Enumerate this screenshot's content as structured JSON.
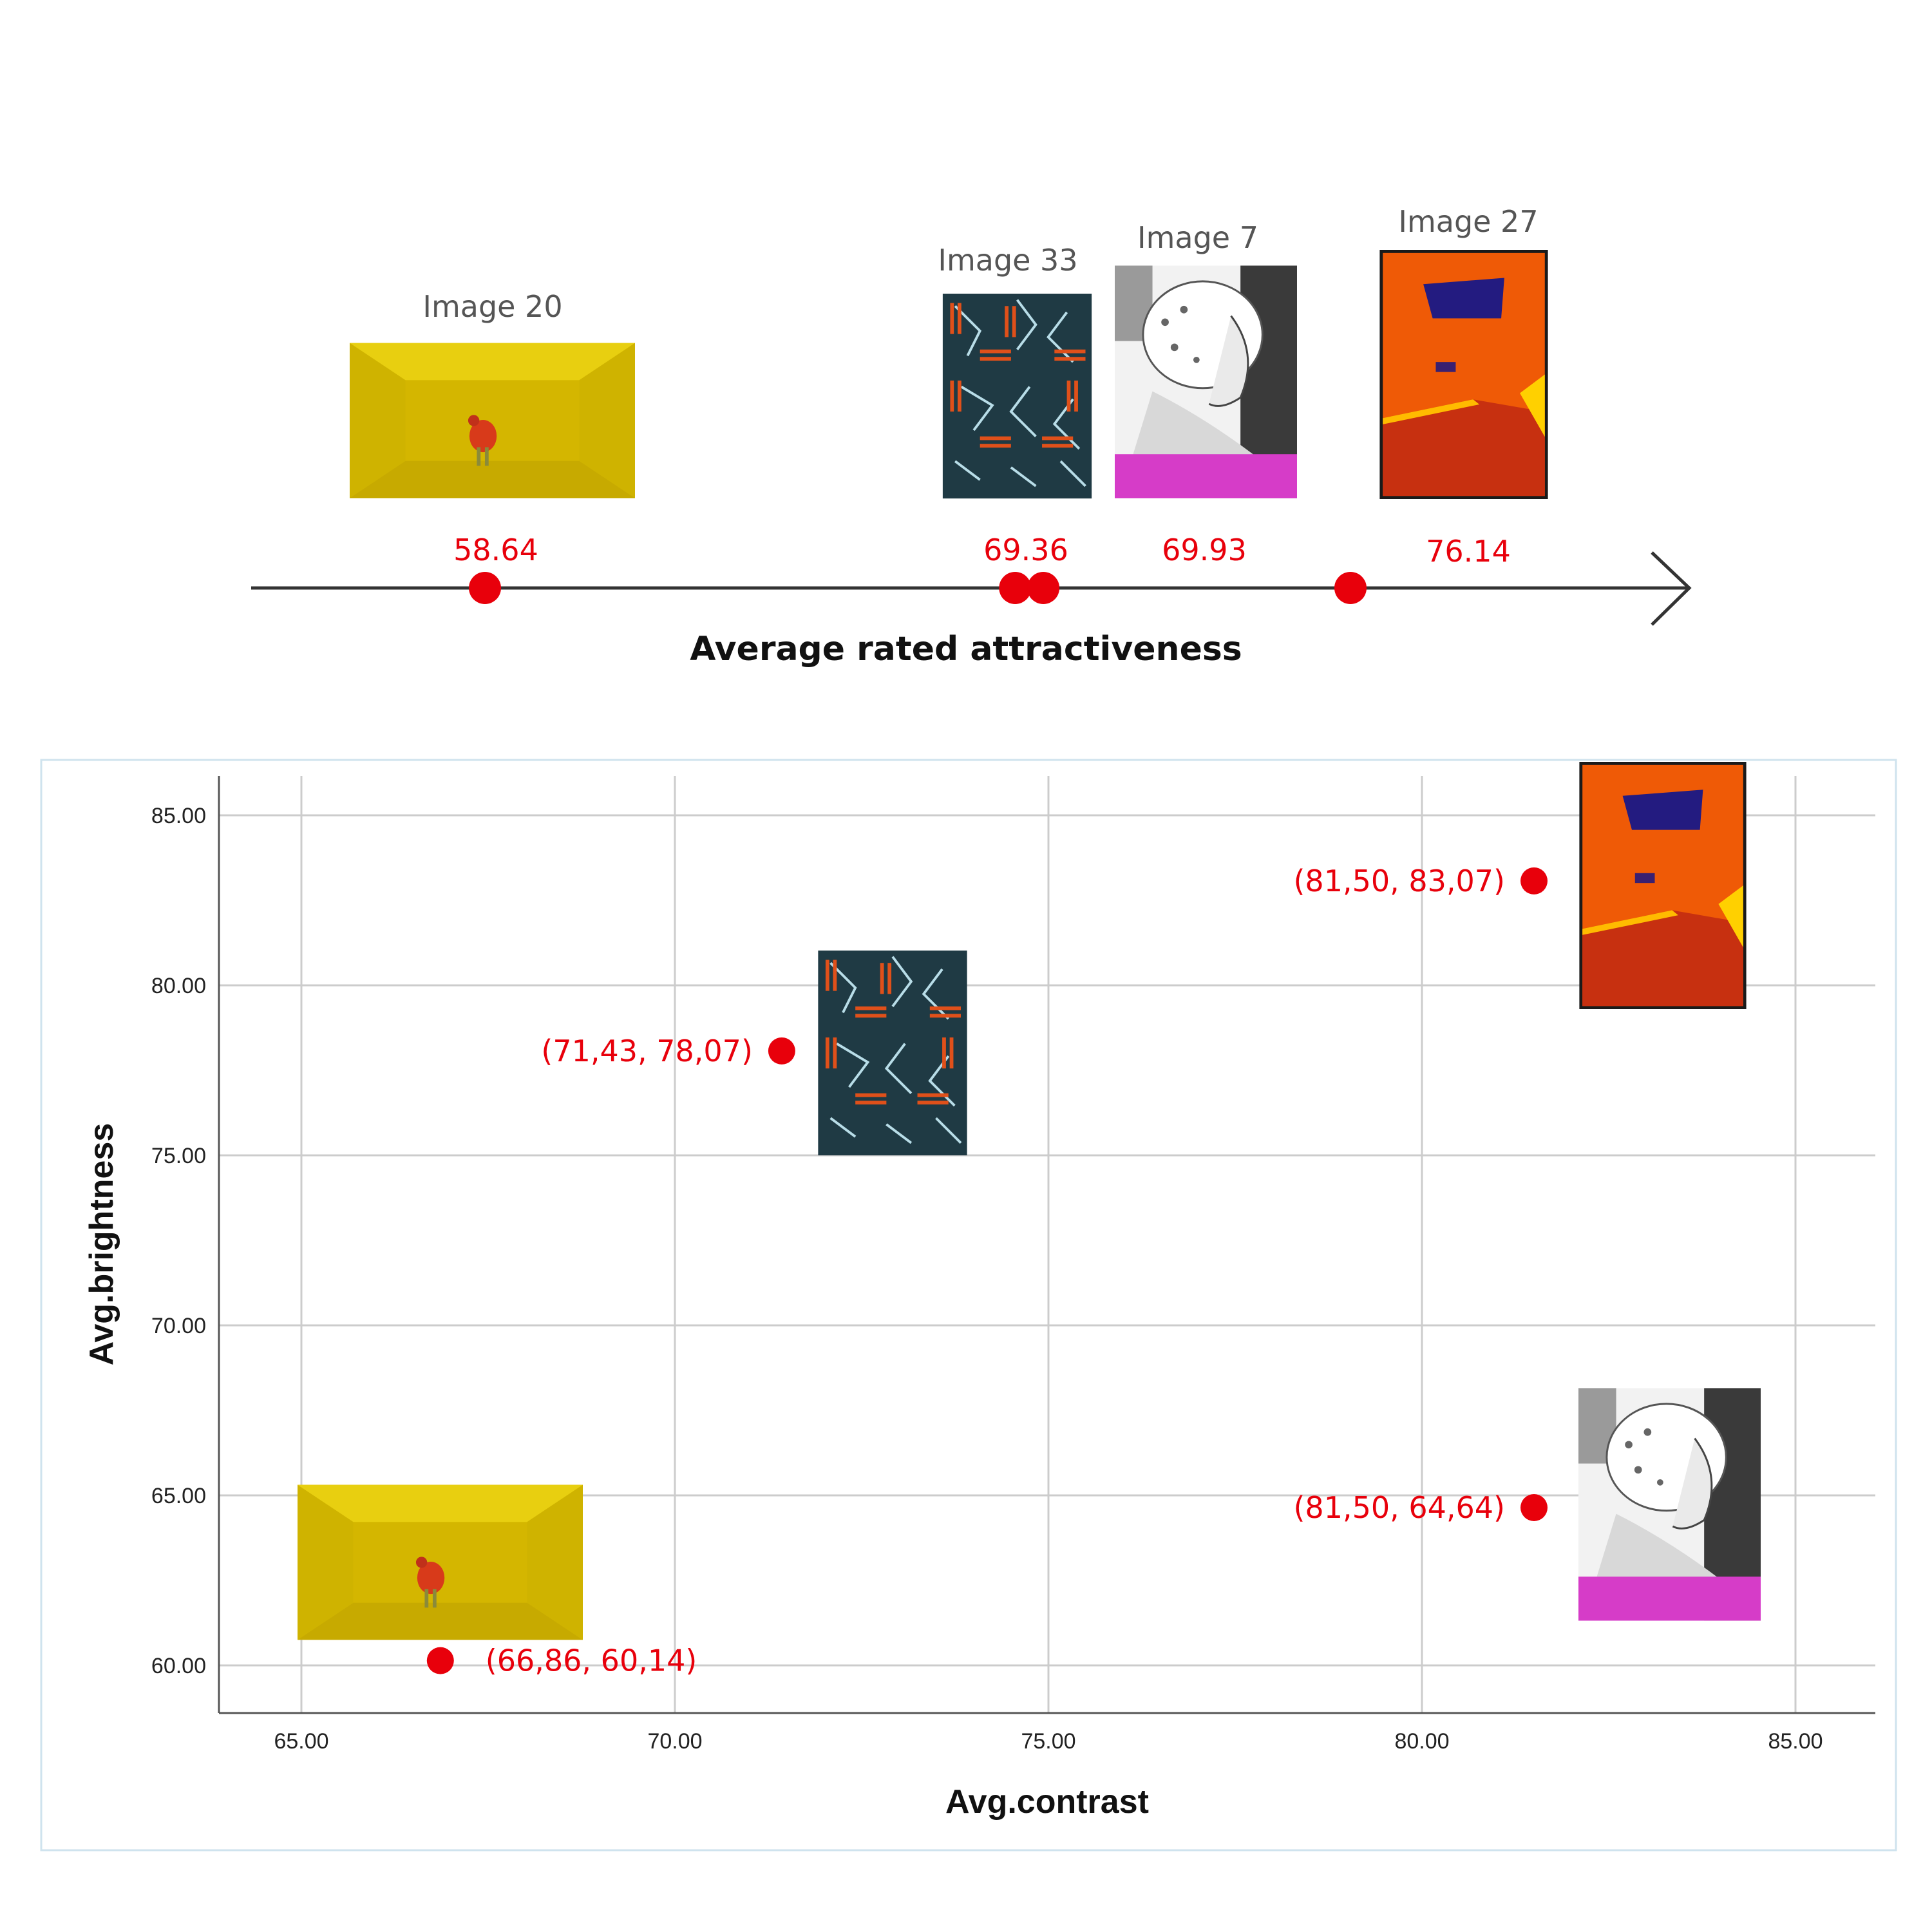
{
  "colors": {
    "marker": "#e8000b",
    "grid": "#cccccc",
    "axis": "#333333",
    "caption": "#555555"
  },
  "timeline": {
    "title": "Average rated attractiveness",
    "items": [
      {
        "id": "img20",
        "label": "Image 20",
        "value": "58.64",
        "v": 58.64,
        "thumb": "yellow-room"
      },
      {
        "id": "img33",
        "label": "Image 33",
        "value": "69.36",
        "v": 69.36,
        "thumb": "blue-pattern"
      },
      {
        "id": "img7",
        "label": "Image 7",
        "value": "69.93",
        "v": 69.93,
        "thumb": "portrait"
      },
      {
        "id": "img27",
        "label": "Image 27",
        "value": "76.14",
        "v": 76.14,
        "thumb": "orange-room"
      }
    ]
  },
  "chart_data": {
    "type": "scatter",
    "xlabel": "Avg.contrast",
    "ylabel": "Avg.brightness",
    "xlim": [
      63.9,
      86.1
    ],
    "ylim": [
      58.7,
      86.4
    ],
    "xticks": [
      "65.00",
      "70.00",
      "75.00",
      "80.00",
      "85.00"
    ],
    "yticks": [
      "60.00",
      "65.00",
      "70.00",
      "75.00",
      "80.00",
      "85.00"
    ],
    "grid": true,
    "points": [
      {
        "x": 66.86,
        "y": 60.14,
        "label": "(66,86, 60,14)",
        "thumb": "yellow-room"
      },
      {
        "x": 71.43,
        "y": 78.07,
        "label": "(71,43, 78,07)",
        "thumb": "blue-pattern"
      },
      {
        "x": 81.5,
        "y": 83.07,
        "label": "(81,50, 83,07)",
        "thumb": "orange-room"
      },
      {
        "x": 81.5,
        "y": 64.64,
        "label": "(81,50, 64,64)",
        "thumb": "portrait"
      }
    ]
  }
}
